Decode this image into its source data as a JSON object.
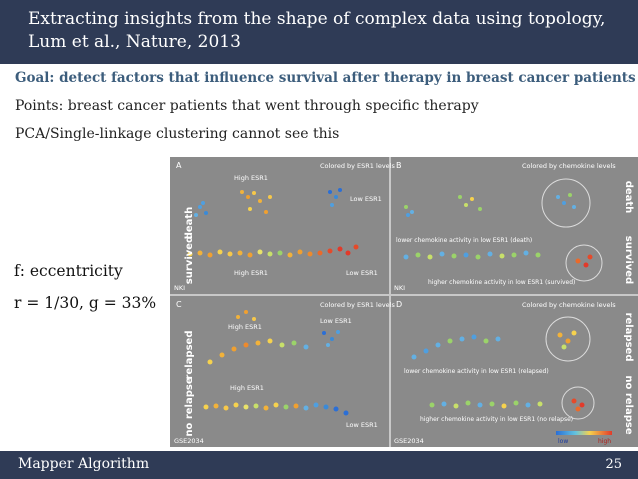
{
  "slide": {
    "title_line1": "Extracting insights from the shape of complex data using topology,",
    "title_line2": "Lum et al., Nature, 2013",
    "goal": "Goal: detect factors that influence survival after therapy in breast cancer patients",
    "points": "Points: breast cancer patients that went through specific therapy",
    "pca": "PCA/Single-linkage clustering cannot see this",
    "eccentricity": "f: eccentricity",
    "params": "r = 1/30, g = 33%",
    "footer_left": "Mapper Algorithm",
    "page_number": "25"
  },
  "figure": {
    "row_labels": {
      "death": "death",
      "survived": "survived",
      "relapsed": "relapsed",
      "no_relapse": "no relapse"
    },
    "panel_a": {
      "letter": "A",
      "colored_by": "Colored by ESR1 levels",
      "high_esr1_top": "High ESR1",
      "low_esr1_top": "Low ESR1",
      "high_esr1_bottom": "High ESR1",
      "low_esr1_bottom": "Low ESR1",
      "dataset": "NKI"
    },
    "panel_b": {
      "letter": "B",
      "colored_by": "Colored by chemokine levels",
      "death_note": "lower chemokine activity in low ESR1 (death)",
      "survived_note": "higher chemokine activity in low ESR1 (survived)",
      "dataset": "NKI"
    },
    "panel_c": {
      "letter": "C",
      "colored_by": "Colored by ESR1 levels",
      "high_esr1_top": "High ESR1",
      "low_esr1_top": "Low ESR1",
      "high_esr1_bottom": "High ESR1",
      "low_esr1_bottom": "Low ESR1",
      "dataset": "GSE2034"
    },
    "panel_d": {
      "letter": "D",
      "colored_by": "Colored by chemokine levels",
      "relapsed_note": "lower chemokine activity in low ESR1 (relapsed)",
      "no_relapse_note": "higher chemokine activity in low ESR1 (no relapse)",
      "dataset": "GSE2034"
    },
    "colorbar": {
      "low": "low",
      "high": "high"
    },
    "colors": {
      "background": "#8a8a8a",
      "divider": "#c8c8c8",
      "label_text": "#ffffff",
      "low": "#2b6fd6",
      "high": "#e23a2a"
    }
  }
}
